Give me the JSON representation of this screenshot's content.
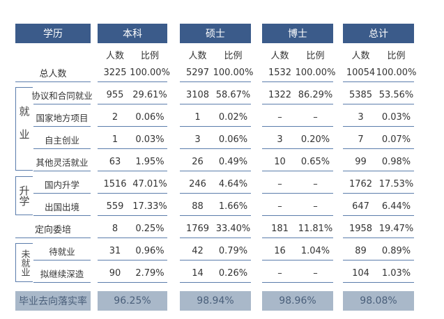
{
  "header": {
    "label": "学历",
    "groups": [
      "本科",
      "硕士",
      "博士",
      "总计"
    ],
    "subheaders": [
      "人数",
      "比例"
    ]
  },
  "total_row": {
    "label": "总人数",
    "cells": [
      "3225",
      "100.00%",
      "5297",
      "100.00%",
      "1532",
      "100.00%",
      "10054",
      "100.00%"
    ]
  },
  "sections": [
    {
      "name": "就业",
      "rows": [
        {
          "label": "协议和合同就业",
          "cells": [
            "955",
            "29.61%",
            "3108",
            "58.67%",
            "1322",
            "86.29%",
            "5385",
            "53.56%"
          ]
        },
        {
          "label": "国家地方项目",
          "cells": [
            "2",
            "0.06%",
            "1",
            "0.02%",
            "–",
            "–",
            "3",
            "0.03%"
          ]
        },
        {
          "label": "自主创业",
          "cells": [
            "1",
            "0.03%",
            "3",
            "0.06%",
            "3",
            "0.20%",
            "7",
            "0.07%"
          ]
        },
        {
          "label": "其他灵活就业",
          "cells": [
            "63",
            "1.95%",
            "26",
            "0.49%",
            "10",
            "0.65%",
            "99",
            "0.98%"
          ]
        }
      ]
    },
    {
      "name": "升学",
      "rows": [
        {
          "label": "国内升学",
          "cells": [
            "1516",
            "47.01%",
            "246",
            "4.64%",
            "–",
            "–",
            "1762",
            "17.53%"
          ]
        },
        {
          "label": "出国出境",
          "cells": [
            "559",
            "17.33%",
            "88",
            "1.66%",
            "–",
            "–",
            "647",
            "6.44%"
          ]
        }
      ]
    },
    {
      "rows": [
        {
          "label": "定向委培",
          "cells": [
            "8",
            "0.25%",
            "1769",
            "33.40%",
            "181",
            "11.81%",
            "1958",
            "19.47%"
          ]
        }
      ]
    },
    {
      "name": "未就业",
      "rows": [
        {
          "label": "待就业",
          "cells": [
            "31",
            "0.96%",
            "42",
            "0.79%",
            "16",
            "1.04%",
            "89",
            "0.89%"
          ]
        },
        {
          "label": "拟继续深造",
          "cells": [
            "90",
            "2.79%",
            "14",
            "0.26%",
            "–",
            "–",
            "104",
            "1.03%"
          ]
        }
      ]
    }
  ],
  "footer": {
    "label": "毕业去向落实率",
    "values": [
      "96.25%",
      "98.94%",
      "98.96%",
      "98.08%"
    ]
  }
}
